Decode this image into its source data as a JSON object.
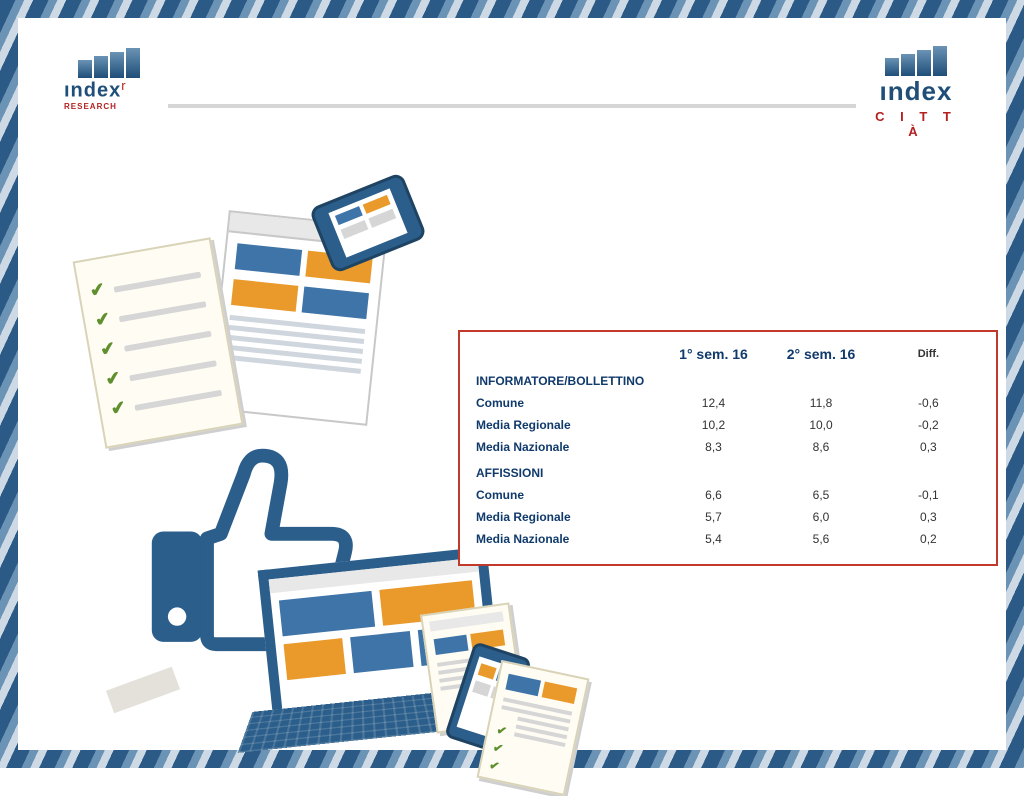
{
  "logos": {
    "left_main": "ındex",
    "left_r": "r",
    "left_sub": "RESEARCH",
    "right_main": "ındex",
    "right_sub": "C I T T À"
  },
  "table": {
    "border_color": "#c0392b",
    "label_color": "#103a6b",
    "value_color": "#333333",
    "columns": {
      "c1": "1° sem. 16",
      "c2": "2° sem. 16",
      "c3": "Diff."
    },
    "sections": [
      {
        "title": "INFORMATORE/BOLLETTINO",
        "rows": [
          {
            "label": "Comune",
            "v1": "12,4",
            "v2": "11,8",
            "d": "-0,6"
          },
          {
            "label": "Media Regionale",
            "v1": "10,2",
            "v2": "10,0",
            "d": "-0,2"
          },
          {
            "label": "Media Nazionale",
            "v1": "8,3",
            "v2": "8,6",
            "d": "0,3"
          }
        ]
      },
      {
        "title": "AFFISSIONI",
        "rows": [
          {
            "label": "Comune",
            "v1": "6,6",
            "v2": "6,5",
            "d": "-0,1"
          },
          {
            "label": "Media Regionale",
            "v1": "5,7",
            "v2": "6,0",
            "d": "0,3"
          },
          {
            "label": "Media Nazionale",
            "v1": "5,4",
            "v2": "5,6",
            "d": "0,2"
          }
        ]
      }
    ]
  },
  "colors": {
    "brand_blue": "#2b5e8a",
    "brand_red": "#b52020",
    "orange": "#e99a2b",
    "pale": "#d6d6d6"
  }
}
